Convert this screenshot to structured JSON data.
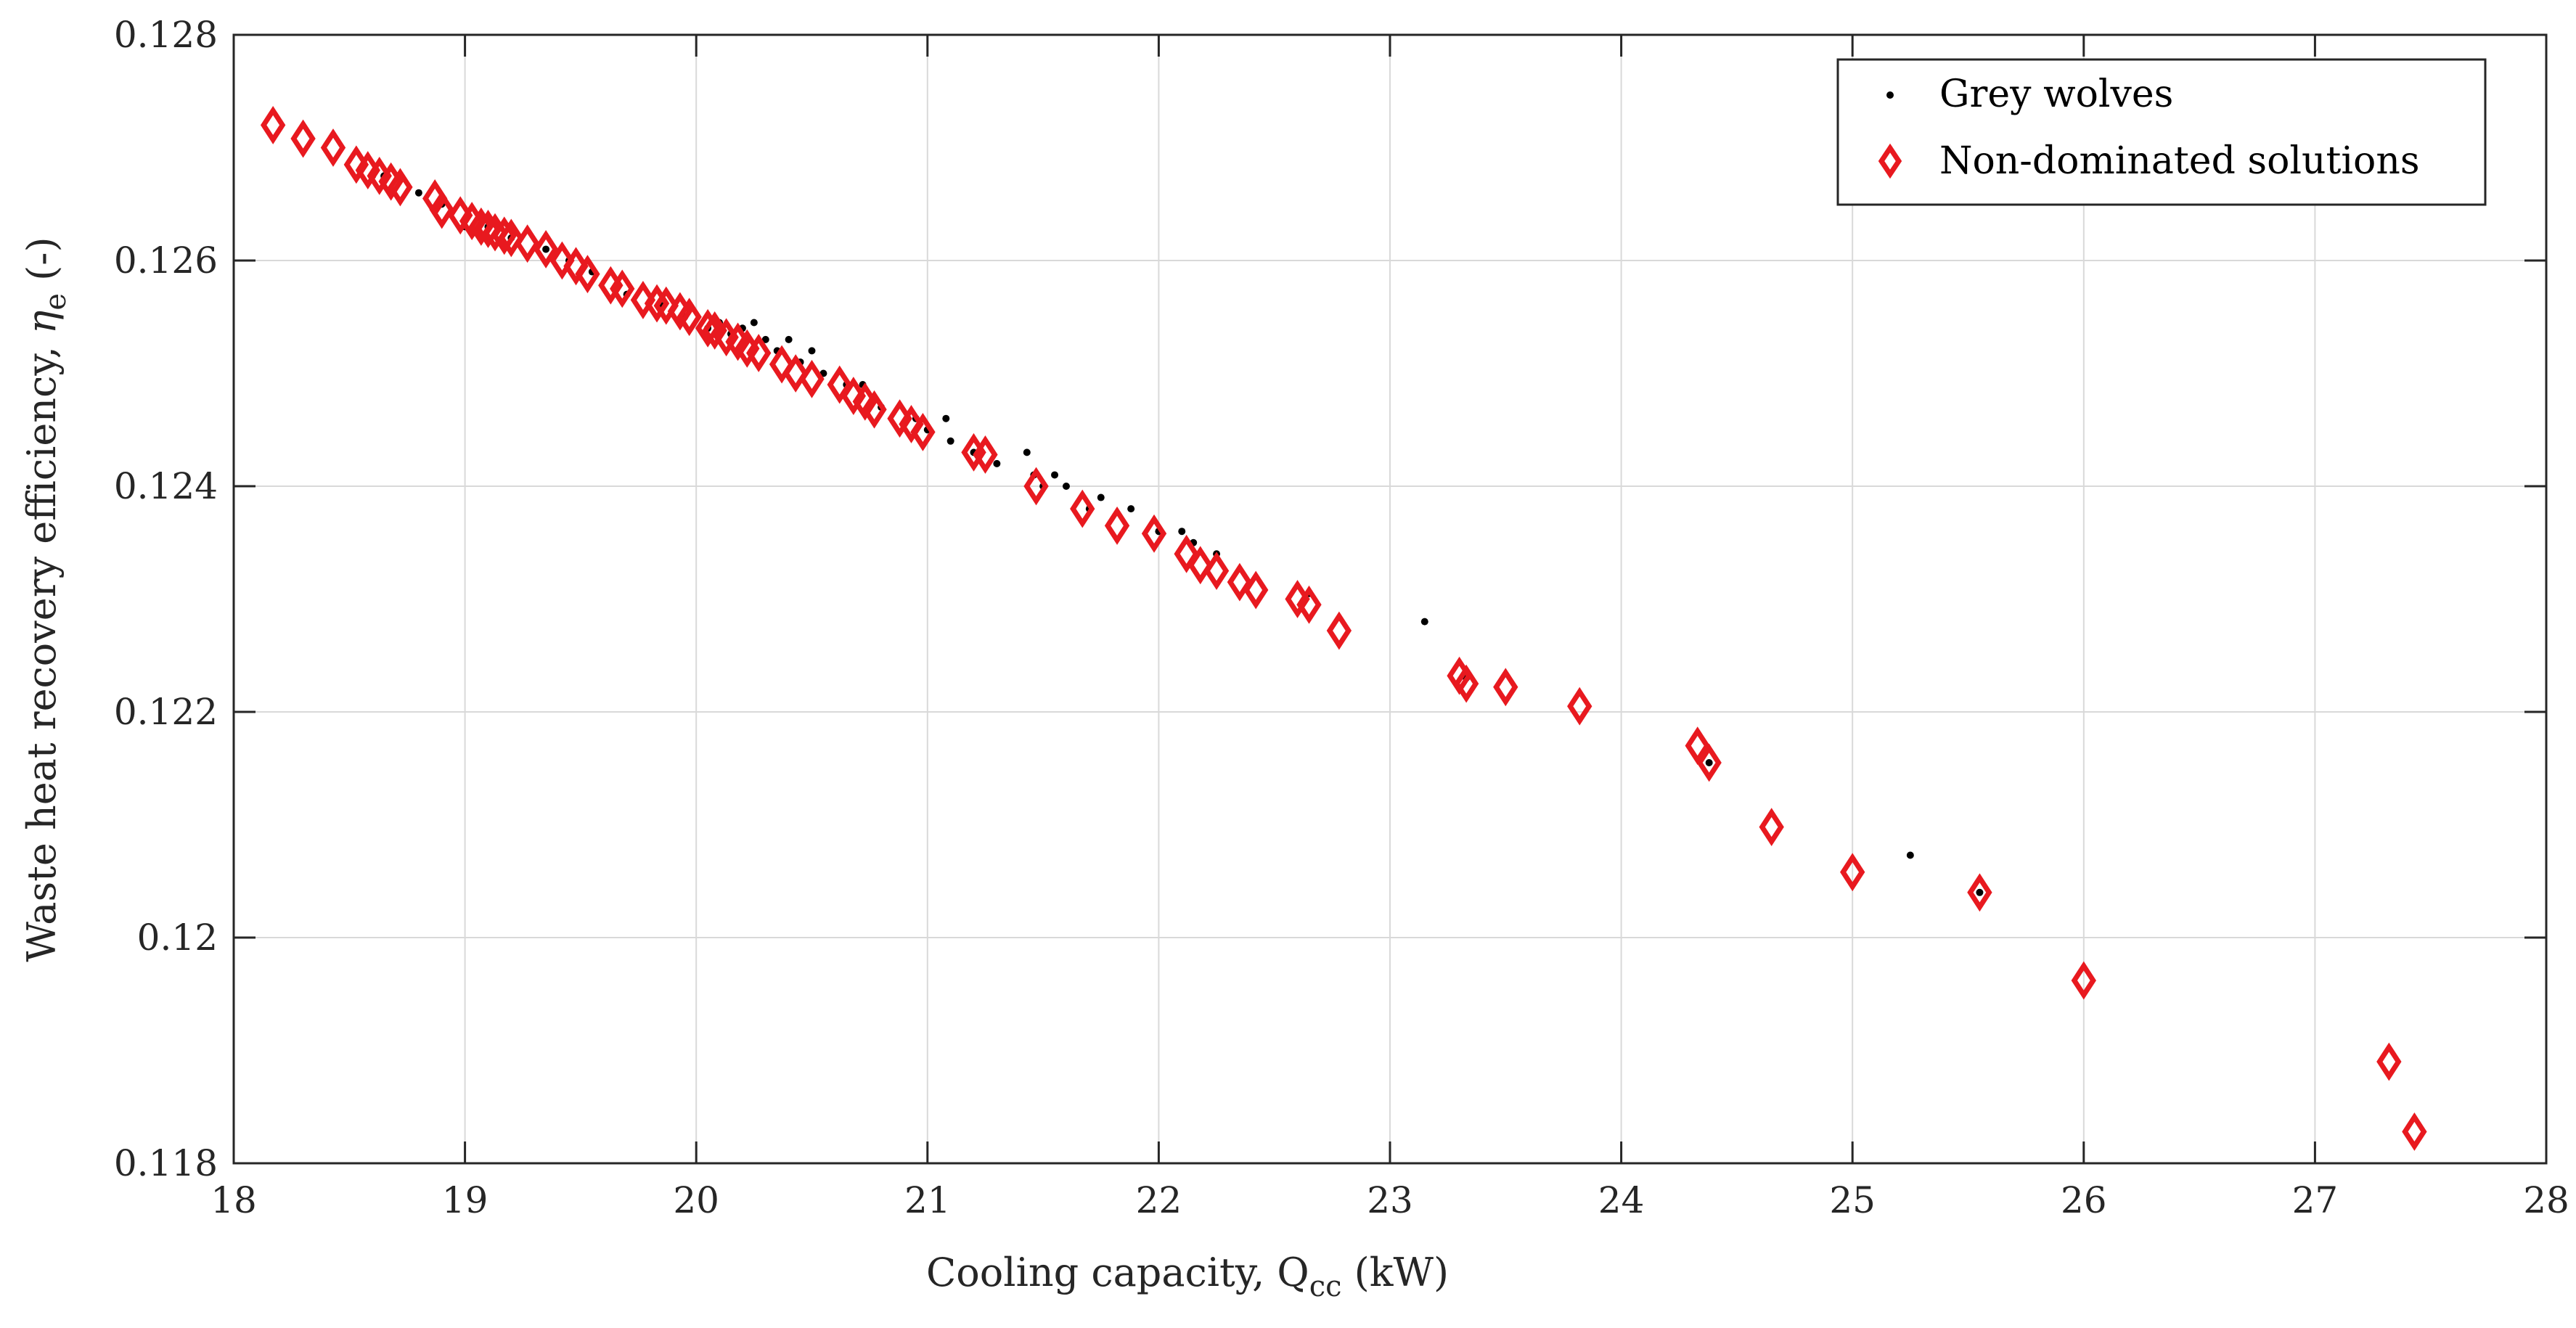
{
  "chart_data": {
    "type": "scatter",
    "xlabel": {
      "main": "Cooling capacity, Q",
      "sub": "cc",
      "unit": " (kW)"
    },
    "ylabel": {
      "main": "Waste heat recovery efficiency, ",
      "symbol": "η",
      "sub": "e",
      "unit": " (-)"
    },
    "xlim": [
      18,
      28
    ],
    "ylim": [
      0.118,
      0.128
    ],
    "xticks": [
      18,
      19,
      20,
      21,
      22,
      23,
      24,
      25,
      26,
      27,
      28
    ],
    "yticks": [
      0.118,
      0.12,
      0.122,
      0.124,
      0.126,
      0.128
    ],
    "xtick_labels": [
      "18",
      "19",
      "20",
      "21",
      "22",
      "23",
      "24",
      "25",
      "26",
      "27",
      "28"
    ],
    "ytick_labels": [
      "0.118",
      "0.12",
      "0.122",
      "0.124",
      "0.126",
      "0.128"
    ],
    "grid": true,
    "legend": {
      "placement": "top-right",
      "entries": [
        "Grey wolves",
        "Non-dominated solutions"
      ]
    },
    "series": [
      {
        "name": "Grey wolves",
        "color": "#000000",
        "marker": "dot",
        "x": [
          18.6,
          18.65,
          18.8,
          18.9,
          19.0,
          19.1,
          19.2,
          19.35,
          19.45,
          19.55,
          19.7,
          19.85,
          19.95,
          20.05,
          20.1,
          20.15,
          20.2,
          20.25,
          20.3,
          20.35,
          20.4,
          20.45,
          20.5,
          20.55,
          20.65,
          20.72,
          20.8,
          20.95,
          21.0,
          21.08,
          21.1,
          21.2,
          21.3,
          21.43,
          21.46,
          21.5,
          21.55,
          21.6,
          21.7,
          21.75,
          21.88,
          22.0,
          22.1,
          22.15,
          22.25,
          22.65,
          23.15,
          23.33,
          24.38,
          25.25,
          25.55
        ],
        "y": [
          0.12675,
          0.12675,
          0.1266,
          0.1265,
          0.1263,
          0.1263,
          0.1262,
          0.1261,
          0.126,
          0.1259,
          0.1257,
          0.1256,
          0.1255,
          0.1254,
          0.12545,
          0.12535,
          0.1254,
          0.12545,
          0.1253,
          0.1252,
          0.1253,
          0.1251,
          0.1252,
          0.125,
          0.1249,
          0.1249,
          0.1247,
          0.1246,
          0.1245,
          0.1246,
          0.1244,
          0.1243,
          0.1242,
          0.1243,
          0.1241,
          0.124,
          0.1241,
          0.124,
          0.1238,
          0.1239,
          0.1238,
          0.1236,
          0.1236,
          0.1235,
          0.1234,
          0.12305,
          0.1228,
          0.1223,
          0.12155,
          0.12073,
          0.1204
        ]
      },
      {
        "name": "Non-dominated solutions",
        "color": "#e8191f",
        "marker": "diamond",
        "x": [
          18.17,
          18.3,
          18.43,
          18.53,
          18.58,
          18.63,
          18.68,
          18.72,
          18.87,
          18.9,
          18.98,
          19.03,
          19.07,
          19.1,
          19.13,
          19.17,
          19.2,
          19.27,
          19.35,
          19.42,
          19.48,
          19.53,
          19.63,
          19.68,
          19.77,
          19.83,
          19.87,
          19.93,
          19.97,
          20.05,
          20.08,
          20.13,
          20.18,
          20.22,
          20.27,
          20.37,
          20.43,
          20.5,
          20.62,
          20.68,
          20.73,
          20.77,
          20.88,
          20.93,
          20.98,
          21.2,
          21.25,
          21.47,
          21.67,
          21.82,
          21.98,
          22.12,
          22.18,
          22.25,
          22.35,
          22.42,
          22.6,
          22.65,
          22.78,
          23.3,
          23.33,
          23.5,
          23.82,
          24.33,
          24.38,
          24.65,
          25.0,
          25.55,
          26.0,
          27.32,
          27.43
        ],
        "y": [
          0.1272,
          0.12708,
          0.127,
          0.12685,
          0.1268,
          0.12675,
          0.1267,
          0.12665,
          0.12655,
          0.12645,
          0.1264,
          0.12635,
          0.1263,
          0.12628,
          0.12625,
          0.12622,
          0.1262,
          0.12615,
          0.1261,
          0.126,
          0.12595,
          0.12588,
          0.12578,
          0.12575,
          0.12565,
          0.12562,
          0.1256,
          0.12555,
          0.1255,
          0.1254,
          0.12538,
          0.12532,
          0.12528,
          0.12522,
          0.12518,
          0.12508,
          0.125,
          0.12495,
          0.1249,
          0.1248,
          0.12475,
          0.12468,
          0.1246,
          0.12455,
          0.12448,
          0.1243,
          0.12428,
          0.124,
          0.1238,
          0.12365,
          0.12358,
          0.1234,
          0.1233,
          0.12325,
          0.12315,
          0.12308,
          0.123,
          0.12295,
          0.12272,
          0.12232,
          0.12225,
          0.12222,
          0.12205,
          0.1217,
          0.12155,
          0.12098,
          0.12058,
          0.1204,
          0.11962,
          0.1189,
          0.11828
        ]
      }
    ]
  }
}
